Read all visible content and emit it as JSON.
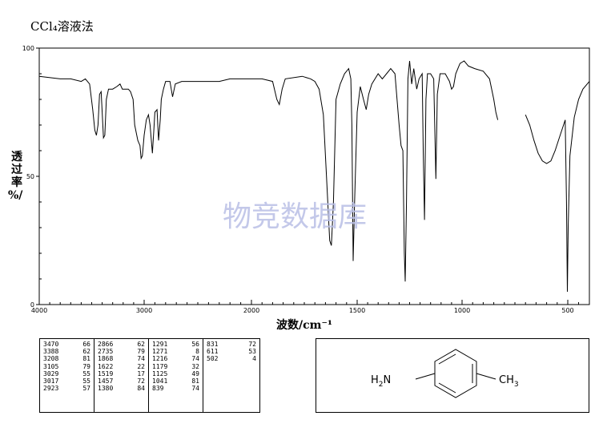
{
  "title": "CCl₄溶液法",
  "watermark": "物竞数据库",
  "chart_data": {
    "type": "line",
    "xlabel": "波数/cm⁻¹",
    "ylabel": "透\n过\n率\n%/",
    "xlim": [
      4000,
      400
    ],
    "ylim": [
      0,
      100
    ],
    "x_ticks": [
      "4000",
      "3000",
      "2000",
      "1500",
      "1000",
      "500"
    ],
    "y_ticks": [
      "0",
      "50",
      "100"
    ],
    "grid": false,
    "series": [
      {
        "segments": [
          [
            [
              4000,
              89
            ],
            [
              3800,
              88
            ],
            [
              3700,
              88
            ],
            [
              3600,
              87
            ],
            [
              3560,
              88
            ],
            [
              3520,
              86
            ],
            [
              3490,
              76
            ],
            [
              3470,
              68
            ],
            [
              3455,
              66
            ],
            [
              3440,
              70
            ],
            [
              3425,
              82
            ],
            [
              3410,
              83
            ],
            [
              3400,
              75
            ],
            [
              3388,
              65
            ],
            [
              3375,
              66
            ],
            [
              3360,
              80
            ],
            [
              3340,
              84
            ],
            [
              3300,
              84
            ],
            [
              3260,
              85
            ],
            [
              3230,
              86
            ],
            [
              3208,
              84
            ],
            [
              3180,
              84
            ],
            [
              3150,
              84
            ],
            [
              3130,
              83
            ],
            [
              3105,
              80
            ],
            [
              3090,
              70
            ],
            [
              3060,
              64
            ],
            [
              3040,
              62
            ],
            [
              3029,
              57
            ],
            [
              3017,
              58
            ],
            [
              3000,
              66
            ],
            [
              2980,
              72
            ],
            [
              2960,
              74
            ],
            [
              2945,
              70
            ],
            [
              2923,
              59
            ],
            [
              2910,
              68
            ],
            [
              2900,
              75
            ],
            [
              2880,
              76
            ],
            [
              2866,
              64
            ],
            [
              2850,
              72
            ],
            [
              2840,
              80
            ],
            [
              2820,
              84
            ],
            [
              2800,
              87
            ],
            [
              2760,
              87
            ],
            [
              2735,
              81
            ],
            [
              2710,
              86
            ],
            [
              2650,
              87
            ],
            [
              2500,
              87
            ],
            [
              2300,
              87
            ],
            [
              2200,
              88
            ],
            [
              2100,
              88
            ],
            [
              2000,
              88
            ],
            [
              1950,
              88
            ],
            [
              1900,
              87
            ],
            [
              1880,
              80
            ],
            [
              1868,
              78
            ],
            [
              1855,
              84
            ],
            [
              1840,
              88
            ],
            [
              1760,
              89
            ],
            [
              1720,
              88
            ],
            [
              1700,
              87
            ],
            [
              1680,
              84
            ],
            [
              1660,
              74
            ],
            [
              1645,
              50
            ],
            [
              1630,
              25
            ],
            [
              1622,
              23
            ],
            [
              1612,
              40
            ],
            [
              1600,
              80
            ],
            [
              1580,
              86
            ],
            [
              1560,
              90
            ],
            [
              1540,
              92
            ],
            [
              1530,
              88
            ],
            [
              1525,
              70
            ],
            [
              1519,
              17
            ],
            [
              1512,
              40
            ],
            [
              1500,
              75
            ],
            [
              1485,
              85
            ],
            [
              1470,
              80
            ],
            [
              1457,
              76
            ],
            [
              1445,
              82
            ],
            [
              1430,
              86
            ],
            [
              1400,
              90
            ],
            [
              1380,
              88
            ],
            [
              1360,
              90
            ],
            [
              1340,
              92
            ],
            [
              1320,
              90
            ],
            [
              1300,
              70
            ],
            [
              1291,
              62
            ],
            [
              1282,
              60
            ],
            [
              1275,
              20
            ],
            [
              1271,
              9
            ],
            [
              1265,
              40
            ],
            [
              1258,
              88
            ],
            [
              1250,
              95
            ],
            [
              1240,
              86
            ],
            [
              1230,
              92
            ],
            [
              1216,
              84
            ],
            [
              1205,
              88
            ],
            [
              1190,
              90
            ],
            [
              1185,
              60
            ],
            [
              1179,
              33
            ],
            [
              1172,
              80
            ],
            [
              1165,
              90
            ],
            [
              1150,
              90
            ],
            [
              1135,
              88
            ],
            [
              1125,
              49
            ],
            [
              1118,
              82
            ],
            [
              1105,
              90
            ],
            [
              1080,
              90
            ],
            [
              1060,
              87
            ],
            [
              1050,
              84
            ],
            [
              1041,
              85
            ],
            [
              1030,
              90
            ],
            [
              1010,
              94
            ],
            [
              990,
              95
            ],
            [
              970,
              93
            ],
            [
              940,
              92
            ],
            [
              900,
              91
            ],
            [
              870,
              88
            ],
            [
              850,
              80
            ],
            [
              840,
              75
            ],
            [
              831,
              72
            ]
          ],
          [
            [
              700,
              74
            ],
            [
              680,
              70
            ],
            [
              660,
              64
            ],
            [
              640,
              59
            ],
            [
              620,
              56
            ],
            [
              600,
              55
            ],
            [
              580,
              56
            ],
            [
              560,
              60
            ],
            [
              540,
              65
            ],
            [
              520,
              70
            ],
            [
              512,
              72
            ],
            [
              506,
              40
            ],
            [
              502,
              5
            ],
            [
              498,
              30
            ],
            [
              490,
              58
            ],
            [
              470,
              73
            ],
            [
              450,
              80
            ],
            [
              430,
              84
            ],
            [
              400,
              87
            ]
          ]
        ]
      }
    ],
    "peak_table": [
      [
        [
          "3470",
          "66"
        ],
        [
          "3388",
          "62"
        ],
        [
          "3208",
          "81"
        ],
        [
          "3105",
          "79"
        ],
        [
          "3029",
          "55"
        ],
        [
          "3017",
          "55"
        ],
        [
          "2923",
          "57"
        ]
      ],
      [
        [
          "2866",
          "62"
        ],
        [
          "2735",
          "79"
        ],
        [
          "1868",
          "74"
        ],
        [
          "1622",
          "22"
        ],
        [
          "1519",
          "17"
        ],
        [
          "1457",
          "72"
        ],
        [
          "1380",
          "84"
        ]
      ],
      [
        [
          "1291",
          "56"
        ],
        [
          "1271",
          "8"
        ],
        [
          "1216",
          "74"
        ],
        [
          "1179",
          "32"
        ],
        [
          "1125",
          "49"
        ],
        [
          "1041",
          "81"
        ],
        [
          "839",
          "74"
        ]
      ],
      [
        [
          "831",
          "72"
        ],
        [
          "611",
          "53"
        ],
        [
          "502",
          "4"
        ]
      ]
    ],
    "structure": {
      "left_group": "H2N",
      "right_group": "CH3"
    }
  }
}
